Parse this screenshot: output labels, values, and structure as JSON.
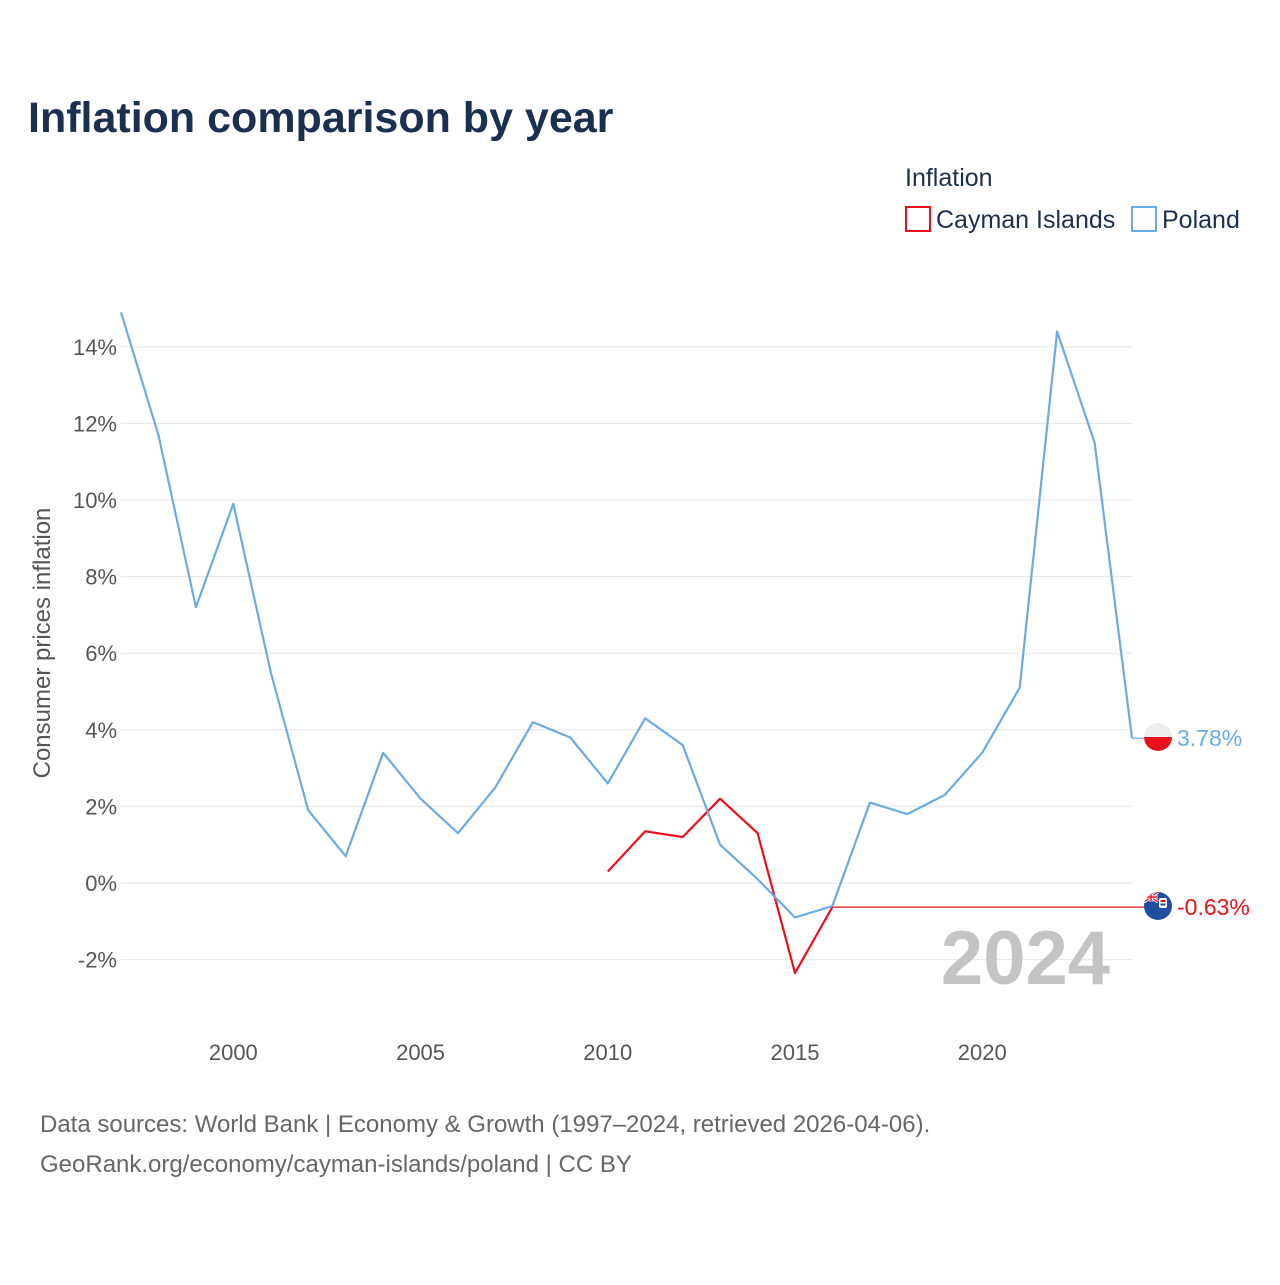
{
  "chart_data": {
    "type": "line",
    "title": "Inflation comparison by year",
    "ylabel": "Consumer prices inflation",
    "xlabel": "",
    "legend_title": "Inflation",
    "legend_position": "top-right",
    "year_watermark": "2024",
    "xlim": [
      1997,
      2024
    ],
    "ylim": [
      -3,
      15
    ],
    "x_ticks": [
      2000,
      2005,
      2010,
      2015,
      2020
    ],
    "y_ticks": [
      -2,
      0,
      2,
      4,
      6,
      8,
      10,
      12,
      14
    ],
    "y_tick_labels": [
      "-2%",
      "0%",
      "2%",
      "4%",
      "6%",
      "8%",
      "10%",
      "12%",
      "14%"
    ],
    "series": [
      {
        "name": "Cayman Islands",
        "color": "#e8101a",
        "points": [
          {
            "x": 2010,
            "y": 0.3
          },
          {
            "x": 2011,
            "y": 1.35
          },
          {
            "x": 2012,
            "y": 1.2
          },
          {
            "x": 2013,
            "y": 2.2
          },
          {
            "x": 2014,
            "y": 1.3
          },
          {
            "x": 2015,
            "y": -2.35
          },
          {
            "x": 2016,
            "y": -0.63
          }
        ],
        "carry_forward_to": 2024,
        "end_label": "-0.63%",
        "flag": "cayman-islands-flag-icon"
      },
      {
        "name": "Poland",
        "color": "#6aabe5",
        "points": [
          {
            "x": 1997,
            "y": 14.9
          },
          {
            "x": 1998,
            "y": 11.7
          },
          {
            "x": 1999,
            "y": 7.2
          },
          {
            "x": 2000,
            "y": 9.9
          },
          {
            "x": 2001,
            "y": 5.5
          },
          {
            "x": 2002,
            "y": 1.9
          },
          {
            "x": 2003,
            "y": 0.7
          },
          {
            "x": 2004,
            "y": 3.4
          },
          {
            "x": 2005,
            "y": 2.2
          },
          {
            "x": 2006,
            "y": 1.3
          },
          {
            "x": 2007,
            "y": 2.5
          },
          {
            "x": 2008,
            "y": 4.2
          },
          {
            "x": 2009,
            "y": 3.8
          },
          {
            "x": 2010,
            "y": 2.6
          },
          {
            "x": 2011,
            "y": 4.3
          },
          {
            "x": 2012,
            "y": 3.6
          },
          {
            "x": 2013,
            "y": 1.0
          },
          {
            "x": 2014,
            "y": 0.1
          },
          {
            "x": 2015,
            "y": -0.9
          },
          {
            "x": 2016,
            "y": -0.6
          },
          {
            "x": 2017,
            "y": 2.1
          },
          {
            "x": 2018,
            "y": 1.8
          },
          {
            "x": 2019,
            "y": 2.3
          },
          {
            "x": 2020,
            "y": 3.4
          },
          {
            "x": 2021,
            "y": 5.1
          },
          {
            "x": 2022,
            "y": 14.4
          },
          {
            "x": 2023,
            "y": 11.5
          },
          {
            "x": 2024,
            "y": 3.78
          }
        ],
        "end_label": "3.78%",
        "flag": "poland-flag-icon"
      }
    ]
  },
  "footer": {
    "line1": "Data sources: World Bank | Economy & Growth (1997–2024, retrieved 2026-04-06).",
    "line2": "GeoRank.org/economy/cayman-islands/poland | CC BY"
  },
  "colors": {
    "title": "#1b3050",
    "axis_text": "#555555",
    "grid": "#e6e6e6",
    "watermark": "#c4c4c4",
    "footer": "#666666"
  }
}
